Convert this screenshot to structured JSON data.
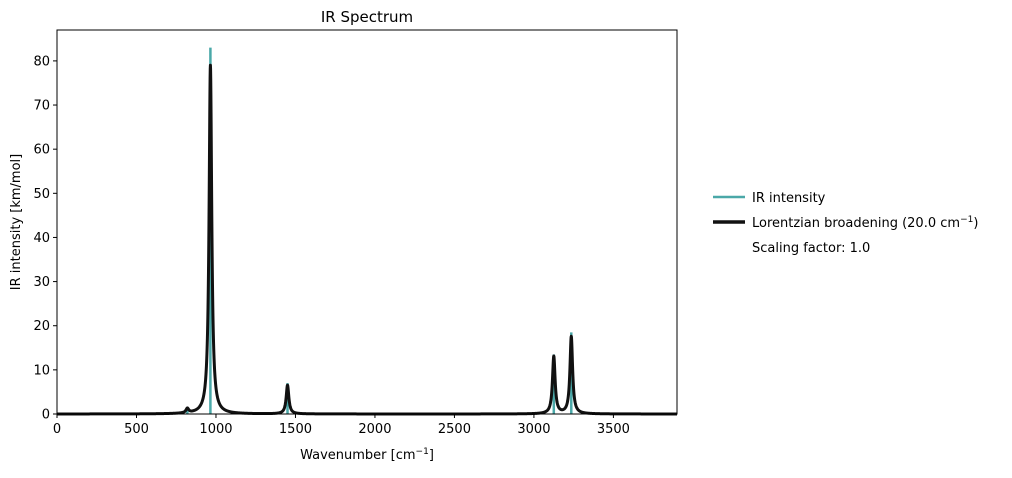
{
  "chart_data": {
    "type": "line",
    "title": "IR Spectrum",
    "xlabel_main": "Wavenumber [cm",
    "xlabel_sup": "−1",
    "xlabel_end": "]",
    "ylabel": "IR intensity [km/mol]",
    "xlim": [
      0,
      3900
    ],
    "ylim": [
      0,
      87
    ],
    "x_ticks": [
      0,
      500,
      1000,
      1500,
      2000,
      2500,
      3000,
      3500
    ],
    "x_tick_labels": [
      "0",
      "500",
      "1000",
      "1500",
      "2000",
      "2500",
      "3000",
      "3500"
    ],
    "y_ticks": [
      0,
      10,
      20,
      30,
      40,
      50,
      60,
      70,
      80
    ],
    "y_tick_labels": [
      "0",
      "10",
      "20",
      "30",
      "40",
      "50",
      "60",
      "70",
      "80"
    ],
    "grid": false,
    "legend_position": "outside-right",
    "series": [
      {
        "name": "IR intensity",
        "kind": "stick",
        "color": "#4aa8a8",
        "x": [
          820,
          965,
          1450,
          3125,
          3235
        ],
        "values": [
          1.0,
          83.0,
          7.0,
          13.5,
          18.5
        ]
      },
      {
        "name_main": "Lorentzian broadening (20.0 cm",
        "name_sup": "−1",
        "name_end": ")",
        "kind": "lorentzian",
        "color": "#111111",
        "fwhm": 20.0,
        "peak_x": [
          820,
          965,
          1450,
          3125,
          3235
        ],
        "peak_heights": [
          1.0,
          79.0,
          6.5,
          13.0,
          17.5
        ]
      }
    ],
    "annotation": "Scaling factor: 1.0"
  }
}
